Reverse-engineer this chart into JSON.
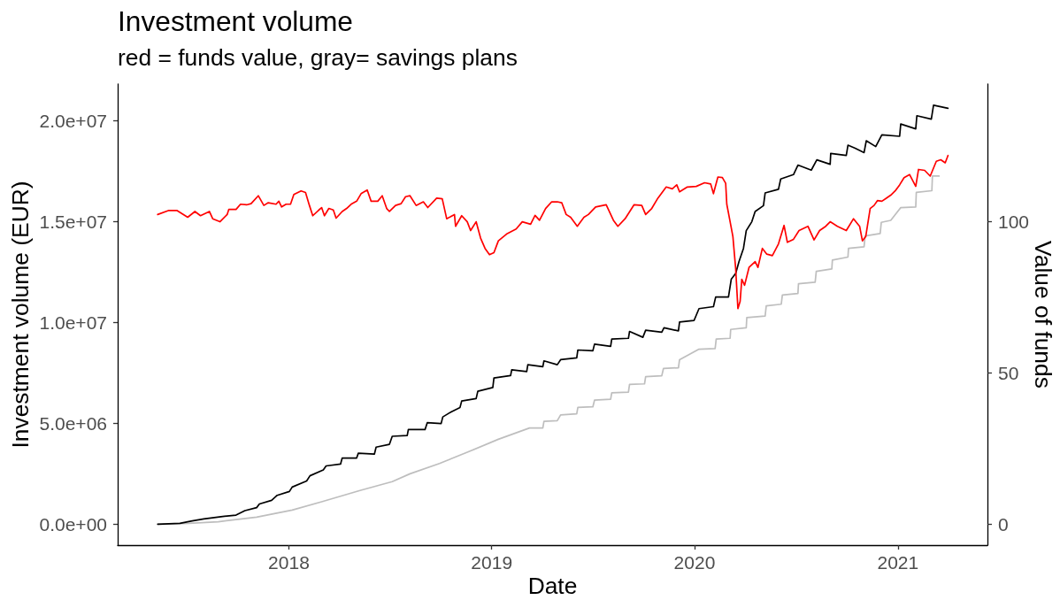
{
  "chart_data": {
    "type": "line",
    "title": "Investment volume",
    "subtitle": "red = funds value, gray= savings plans",
    "xlabel": "Date",
    "ylabel": "Investment volume (EUR)",
    "y2label": "Value of funds",
    "xlim": [
      "2017-02-27",
      "2021-06-11"
    ],
    "xticks": [
      "2018",
      "2019",
      "2020",
      "2021"
    ],
    "ylim": [
      -1040000,
      21830000
    ],
    "yticks": [
      {
        "value": 0,
        "label": "0.0e+00"
      },
      {
        "value": 5000000,
        "label": "5.0e+06"
      },
      {
        "value": 10000000,
        "label": "1.0e+07"
      },
      {
        "value": 15000000,
        "label": "1.5e+07"
      },
      {
        "value": 20000000,
        "label": "2.0e+07"
      }
    ],
    "y2lim": [
      -6.93,
      145.53
    ],
    "y2ticks": [
      0,
      50,
      100
    ],
    "marker": "none",
    "series": [
      {
        "color": "#bebebe",
        "x": [
          "2017-05-10",
          "2017-07-05",
          "2017-08-27",
          "2017-11-04",
          "2018-01-07",
          "2018-03-01",
          "2018-05-09",
          "2018-07-06",
          "2018-08-07",
          "2018-09-29",
          "2018-11-21",
          "2019-01-13",
          "2019-03-10",
          "2019-04-03",
          "2019-04-05",
          "2019-04-29",
          "2019-05-05",
          "2019-06-03",
          "2019-06-05",
          "2019-07-02",
          "2019-07-05",
          "2019-08-03",
          "2019-08-05",
          "2019-09-04",
          "2019-09-06",
          "2019-10-03",
          "2019-10-05",
          "2019-11-03",
          "2019-11-06",
          "2019-12-03",
          "2019-12-05",
          "2020-01-09",
          "2020-02-07",
          "2020-02-09",
          "2020-03-05",
          "2020-03-06",
          "2020-04-03",
          "2020-04-04",
          "2020-05-07",
          "2020-05-09",
          "2020-06-05",
          "2020-06-07",
          "2020-07-05",
          "2020-07-06",
          "2020-08-05",
          "2020-08-07",
          "2020-09-04",
          "2020-09-05",
          "2020-10-03",
          "2020-10-04",
          "2020-11-01",
          "2020-11-03",
          "2020-11-30",
          "2020-12-02",
          "2020-12-19",
          "2021-01-06",
          "2021-02-02",
          "2021-02-03",
          "2021-03-03",
          "2021-03-04",
          "2021-03-16"
        ],
        "values": [
          0,
          40000,
          120000,
          350000,
          700000,
          1110000,
          1670000,
          2110000,
          2500000,
          3010000,
          3600000,
          4210000,
          4770000,
          4770000,
          5100000,
          5130000,
          5420000,
          5470000,
          5790000,
          5820000,
          6150000,
          6200000,
          6520000,
          6550000,
          6930000,
          6960000,
          7320000,
          7360000,
          7720000,
          7760000,
          8160000,
          8680000,
          8710000,
          9180000,
          9220000,
          9660000,
          9740000,
          10250000,
          10320000,
          10830000,
          10910000,
          11370000,
          11440000,
          11930000,
          12000000,
          12540000,
          12660000,
          13100000,
          13250000,
          13680000,
          13760000,
          14300000,
          14420000,
          14970000,
          15070000,
          15700000,
          15730000,
          16460000,
          16540000,
          17270000,
          17270000
        ]
      },
      {
        "color": "#000000",
        "x": [
          "2017-05-10",
          "2017-06-19",
          "2017-07-11",
          "2017-08-01",
          "2017-09-04",
          "2017-09-28",
          "2017-10-14",
          "2017-11-04",
          "2017-11-09",
          "2017-12-01",
          "2017-12-11",
          "2018-01-02",
          "2018-01-07",
          "2018-02-02",
          "2018-02-08",
          "2018-03-04",
          "2018-03-09",
          "2018-04-04",
          "2018-04-07",
          "2018-05-03",
          "2018-05-06",
          "2018-06-04",
          "2018-06-07",
          "2018-07-01",
          "2018-07-06",
          "2018-08-02",
          "2018-08-04",
          "2018-09-03",
          "2018-09-07",
          "2018-10-02",
          "2018-10-05",
          "2018-10-20",
          "2018-11-05",
          "2018-11-08",
          "2018-12-04",
          "2018-12-07",
          "2019-01-03",
          "2019-01-05",
          "2019-02-04",
          "2019-02-06",
          "2019-03-05",
          "2019-03-07",
          "2019-04-03",
          "2019-04-05",
          "2019-04-29",
          "2019-05-05",
          "2019-06-03",
          "2019-06-05",
          "2019-07-02",
          "2019-07-05",
          "2019-08-03",
          "2019-08-05",
          "2019-09-04",
          "2019-09-06",
          "2019-09-30",
          "2019-10-05",
          "2019-11-03",
          "2019-11-07",
          "2019-12-03",
          "2019-12-05",
          "2019-12-31",
          "2020-01-09",
          "2020-02-04",
          "2020-02-08",
          "2020-03-02",
          "2020-03-07",
          "2020-03-15",
          "2020-03-21",
          "2020-03-29",
          "2020-04-03",
          "2020-04-13",
          "2020-04-19",
          "2020-05-04",
          "2020-05-07",
          "2020-05-31",
          "2020-06-04",
          "2020-06-27",
          "2020-07-05",
          "2020-07-29",
          "2020-08-08",
          "2020-09-01",
          "2020-09-02",
          "2020-09-30",
          "2020-10-03",
          "2020-10-16",
          "2020-11-01",
          "2020-11-05",
          "2020-11-22",
          "2020-12-03",
          "2021-01-04",
          "2021-01-06",
          "2021-02-02",
          "2021-02-04",
          "2021-03-02",
          "2021-03-06",
          "2021-04-01"
        ],
        "values": [
          0,
          40000,
          160000,
          260000,
          380000,
          450000,
          670000,
          820000,
          1000000,
          1180000,
          1430000,
          1620000,
          1840000,
          2140000,
          2400000,
          2690000,
          2890000,
          2980000,
          3280000,
          3280000,
          3520000,
          3480000,
          3820000,
          3960000,
          4360000,
          4400000,
          4690000,
          4690000,
          5030000,
          4990000,
          5320000,
          5570000,
          5790000,
          6110000,
          6230000,
          6590000,
          6780000,
          7250000,
          7370000,
          7660000,
          7570000,
          7910000,
          7810000,
          8100000,
          7910000,
          8160000,
          8250000,
          8640000,
          8600000,
          8930000,
          8820000,
          9180000,
          9220000,
          9560000,
          9270000,
          9620000,
          9520000,
          9740000,
          9590000,
          10030000,
          10100000,
          10690000,
          10790000,
          11270000,
          11270000,
          12150000,
          12440000,
          13030000,
          13680000,
          14560000,
          15000000,
          15510000,
          15800000,
          16430000,
          16610000,
          17120000,
          17340000,
          17810000,
          17560000,
          18070000,
          17850000,
          18390000,
          18290000,
          18800000,
          18650000,
          18430000,
          19020000,
          18730000,
          19310000,
          19240000,
          19850000,
          19610000,
          20260000,
          20090000,
          20780000,
          20630000
        ]
      },
      {
        "color": "#ff0000",
        "axis": "y2",
        "x": [
          "2017-05-10",
          "2017-05-29",
          "2017-06-14",
          "2017-07-03",
          "2017-07-16",
          "2017-07-26",
          "2017-08-11",
          "2017-08-17",
          "2017-08-30",
          "2017-09-12",
          "2017-09-15",
          "2017-09-28",
          "2017-10-06",
          "2017-10-17",
          "2017-10-25",
          "2017-11-07",
          "2017-11-17",
          "2017-11-25",
          "2017-12-09",
          "2017-12-14",
          "2017-12-19",
          "2017-12-27",
          "2018-01-04",
          "2018-01-10",
          "2018-01-23",
          "2018-01-31",
          "2018-02-07",
          "2018-02-13",
          "2018-02-24",
          "2018-03-01",
          "2018-03-06",
          "2018-03-14",
          "2018-03-22",
          "2018-03-27",
          "2018-04-07",
          "2018-04-15",
          "2018-04-23",
          "2018-05-03",
          "2018-05-11",
          "2018-05-22",
          "2018-05-29",
          "2018-06-10",
          "2018-06-18",
          "2018-06-26",
          "2018-07-01",
          "2018-07-12",
          "2018-07-22",
          "2018-07-30",
          "2018-08-07",
          "2018-08-18",
          "2018-08-31",
          "2018-09-08",
          "2018-09-24",
          "2018-10-04",
          "2018-10-12",
          "2018-10-26",
          "2018-10-28",
          "2018-11-08",
          "2018-11-18",
          "2018-11-24",
          "2018-12-04",
          "2018-12-12",
          "2018-12-20",
          "2018-12-28",
          "2019-01-05",
          "2019-01-13",
          "2019-01-29",
          "2019-02-14",
          "2019-02-25",
          "2019-03-12",
          "2019-03-20",
          "2019-03-28",
          "2019-04-08",
          "2019-04-19",
          "2019-04-29",
          "2019-05-07",
          "2019-05-15",
          "2019-05-23",
          "2019-06-04",
          "2019-06-16",
          "2019-06-24",
          "2019-07-07",
          "2019-07-26",
          "2019-08-08",
          "2019-08-16",
          "2019-08-29",
          "2019-09-14",
          "2019-09-28",
          "2019-10-05",
          "2019-10-16",
          "2019-10-27",
          "2019-11-11",
          "2019-11-22",
          "2019-11-30",
          "2019-12-05",
          "2019-12-19",
          "2020-01-04",
          "2020-01-19",
          "2020-01-30",
          "2020-02-04",
          "2020-02-12",
          "2020-02-20",
          "2020-02-26",
          "2020-02-28",
          "2020-03-05",
          "2020-03-10",
          "2020-03-15",
          "2020-03-19",
          "2020-03-23",
          "2020-03-26",
          "2020-03-31",
          "2020-04-08",
          "2020-04-19",
          "2020-04-24",
          "2020-05-02",
          "2020-05-10",
          "2020-05-20",
          "2020-05-31",
          "2020-06-10",
          "2020-06-16",
          "2020-06-27",
          "2020-07-07",
          "2020-07-23",
          "2020-08-03",
          "2020-08-13",
          "2020-08-24",
          "2020-09-01",
          "2020-09-14",
          "2020-09-30",
          "2020-10-13",
          "2020-10-24",
          "2020-10-29",
          "2020-11-04",
          "2020-11-12",
          "2020-11-19",
          "2020-11-25",
          "2020-12-03",
          "2020-12-11",
          "2020-12-19",
          "2020-12-27",
          "2021-01-04",
          "2021-01-12",
          "2021-01-22",
          "2021-02-02",
          "2021-02-07",
          "2021-02-18",
          "2021-02-28",
          "2021-03-11",
          "2021-03-19",
          "2021-03-27",
          "2021-04-01"
        ],
        "values": [
          102.4,
          103.7,
          103.7,
          101.5,
          103.4,
          102.0,
          103.4,
          101.0,
          100.0,
          102.4,
          104.1,
          104.1,
          105.8,
          105.6,
          106.0,
          108.6,
          105.4,
          106.3,
          105.8,
          106.8,
          104.9,
          105.8,
          105.8,
          109.0,
          110.2,
          109.7,
          105.4,
          102.0,
          103.9,
          104.7,
          102.0,
          104.4,
          103.9,
          101.2,
          103.4,
          104.4,
          105.8,
          106.8,
          109.3,
          110.5,
          106.8,
          106.8,
          108.6,
          104.4,
          103.4,
          105.4,
          106.0,
          108.3,
          108.6,
          105.4,
          106.6,
          104.7,
          107.8,
          107.6,
          101.0,
          102.4,
          98.5,
          102.0,
          100.0,
          97.1,
          100.0,
          94.6,
          91.2,
          89.1,
          89.8,
          93.7,
          96.1,
          97.6,
          100.0,
          99.2,
          102.1,
          100.5,
          104.4,
          106.6,
          106.6,
          106.3,
          102.4,
          101.5,
          98.5,
          101.5,
          102.4,
          104.9,
          105.6,
          100.5,
          98.5,
          101.0,
          105.6,
          105.4,
          102.4,
          104.4,
          107.8,
          111.5,
          110.9,
          112.2,
          109.9,
          111.5,
          111.7,
          112.9,
          112.5,
          109.3,
          114.8,
          114.6,
          112.7,
          105.8,
          100.0,
          95.1,
          84.4,
          71.3,
          73.7,
          81.0,
          79.0,
          84.9,
          86.8,
          84.9,
          91.2,
          89.3,
          88.8,
          92.7,
          98.8,
          93.2,
          94.2,
          97.1,
          98.5,
          94.0,
          97.1,
          98.5,
          100.0,
          98.5,
          97.1,
          101.0,
          98.5,
          93.7,
          95.1,
          104.4,
          105.4,
          107.0,
          106.8,
          107.8,
          108.8,
          110.2,
          112.2,
          114.6,
          115.6,
          111.7,
          117.3,
          117.0,
          115.1,
          120.0,
          120.5,
          119.5,
          121.9
        ]
      }
    ]
  }
}
